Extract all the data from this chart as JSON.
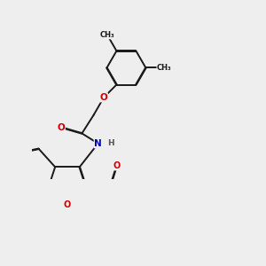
{
  "bg_color": "#eeeeee",
  "bond_color": "#1a1a1a",
  "atom_colors": {
    "O": "#cc0000",
    "N": "#0000bb",
    "Cl": "#00aa00",
    "H": "#555555"
  },
  "lw": 1.4,
  "dbo": 0.008,
  "afs": 7.5,
  "mfs": 6.0,
  "hfs": 6.5
}
